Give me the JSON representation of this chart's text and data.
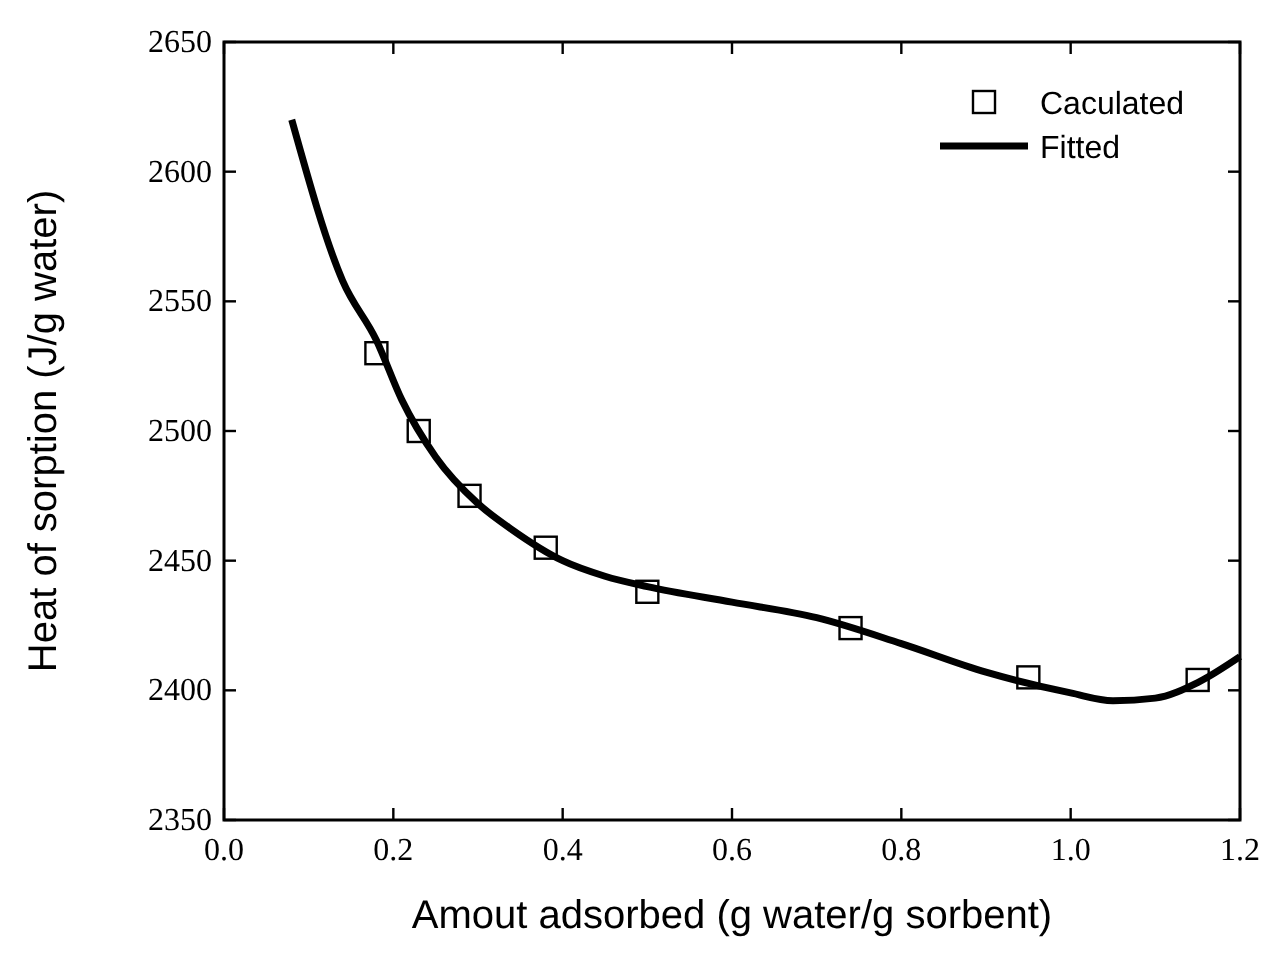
{
  "chart_data": {
    "type": "scatter",
    "xlabel": "Amout adsorbed (g water/g sorbent)",
    "ylabel": "Heat of sorption (J/g water)",
    "xlim": [
      0,
      1.2
    ],
    "ylim": [
      2350,
      2650
    ],
    "xticks": [
      {
        "value": 0,
        "label": "0.0"
      },
      {
        "value": 0.2,
        "label": "0.2"
      },
      {
        "value": 0.4,
        "label": "0.4"
      },
      {
        "value": 0.6,
        "label": "0.6"
      },
      {
        "value": 0.8,
        "label": "0.8"
      },
      {
        "value": 1,
        "label": "1.0"
      },
      {
        "value": 1.2,
        "label": "1.2"
      }
    ],
    "yticks": [
      2350,
      2400,
      2450,
      2500,
      2550,
      2600,
      2650
    ],
    "legend": "top right",
    "grid": false,
    "series": [
      {
        "name": "Caculated",
        "marker": "square",
        "color": "#000000",
        "x": [
          0.18,
          0.23,
          0.29,
          0.38,
          0.5,
          0.74,
          0.95,
          1.15
        ],
        "values": [
          2530,
          2500,
          2475,
          2455,
          2438,
          2424,
          2405,
          2404
        ]
      },
      {
        "name": "Fitted",
        "type": "line",
        "marker": "none",
        "line_style": "solid",
        "color": "#000000",
        "x": [
          0.08,
          0.14,
          0.18,
          0.21,
          0.25,
          0.3,
          0.34,
          0.4,
          0.45,
          0.5,
          0.6,
          0.7,
          0.8,
          0.9,
          1.0,
          1.05,
          1.1,
          1.15,
          1.2
        ],
        "values": [
          2620,
          2558,
          2535,
          2512,
          2490,
          2472,
          2462,
          2450,
          2444,
          2440,
          2434,
          2428,
          2418,
          2407,
          2399,
          2396,
          2397,
          2403,
          2413
        ]
      }
    ]
  }
}
